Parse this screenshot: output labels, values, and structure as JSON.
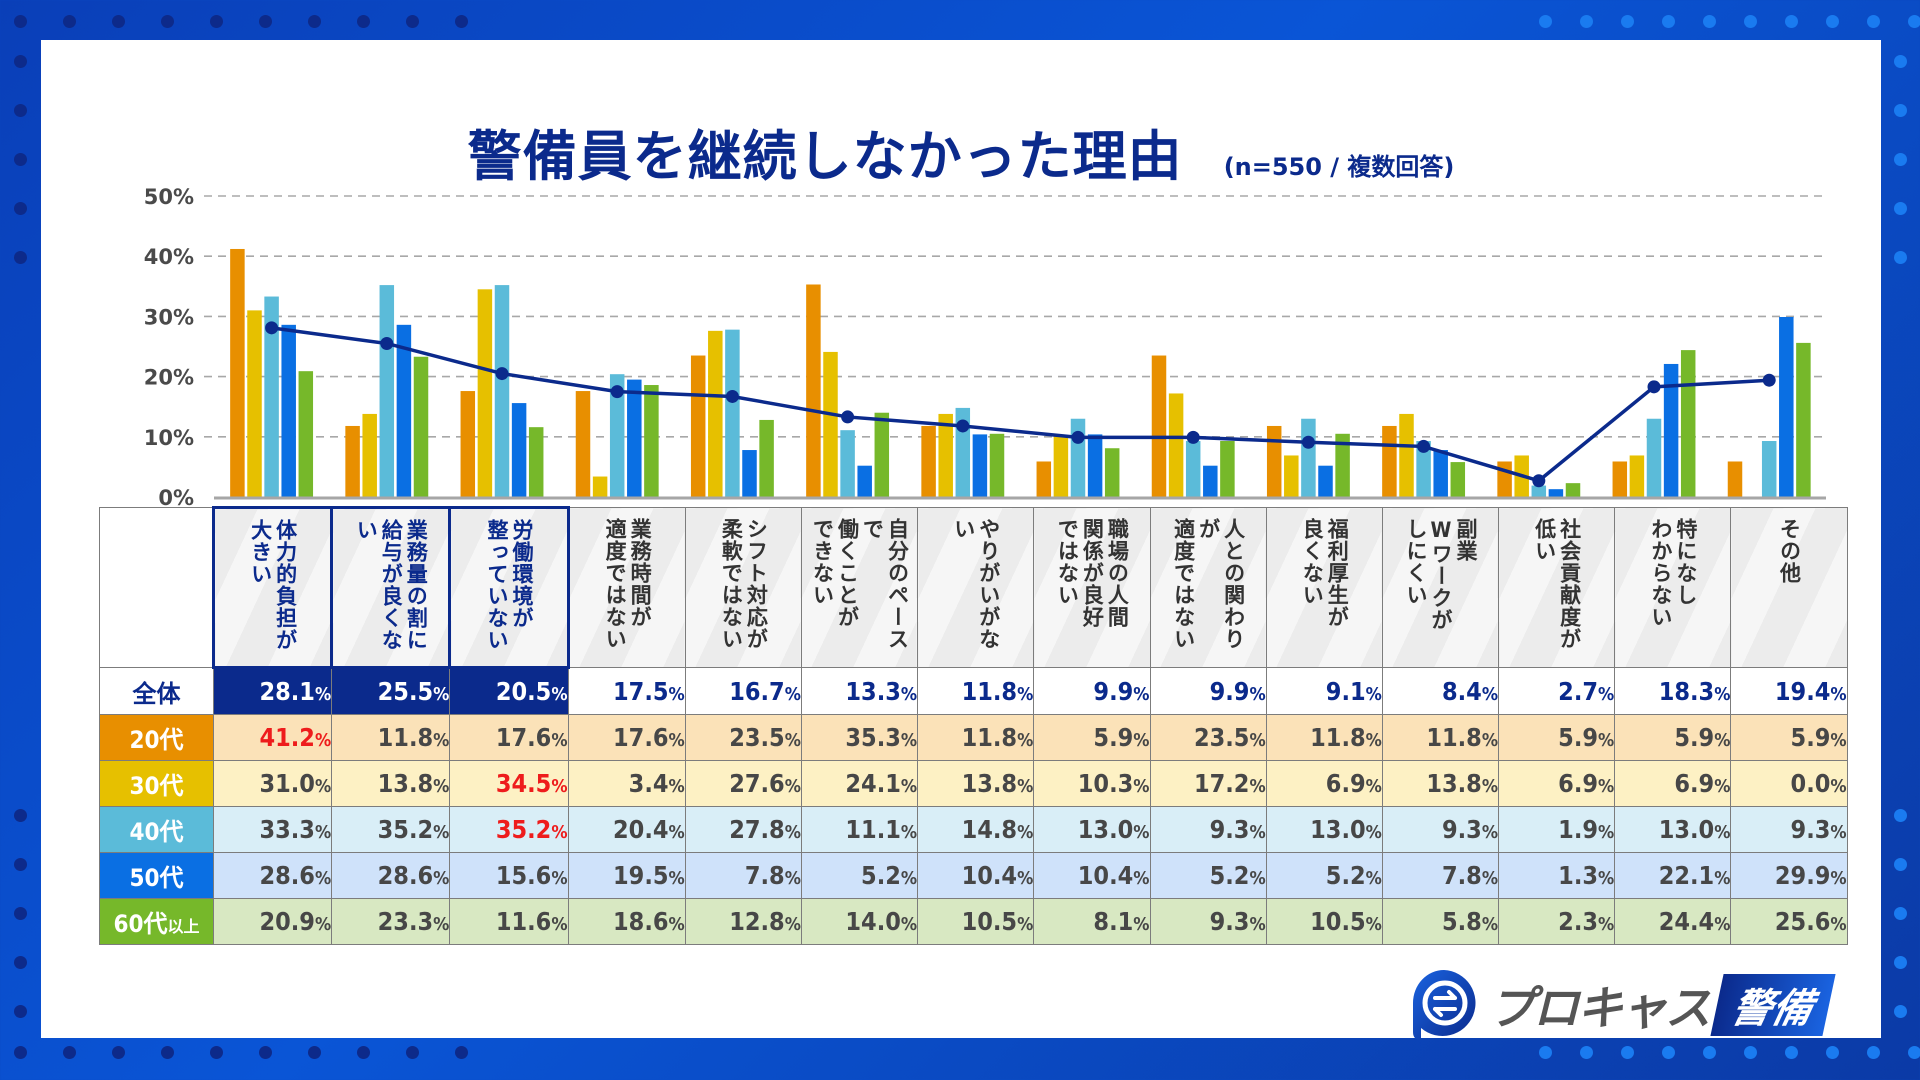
{
  "header": {
    "title": "警備員を継続しなかった理由",
    "subtitle": "(n=550 / 複数回答)"
  },
  "brand": {
    "logo_text": "プロキャス",
    "logo_badge": "警備",
    "logo_icon": "s-arrow-circle-icon"
  },
  "colors": {
    "navy": "#0b2a8c",
    "age20": "#e88f00",
    "age30": "#e6c000",
    "age40": "#5bbbd9",
    "age50": "#0a6fe3",
    "age60": "#76b82a",
    "highlight_red": "#ee1c1c"
  },
  "chart_data": {
    "type": "bar",
    "title": "警備員を継続しなかった理由",
    "subtitle": "(n=550 / 複数回答)",
    "xlabel": "",
    "ylabel": "",
    "ylim": [
      0,
      50
    ],
    "yticks": [
      "0%",
      "10%",
      "20%",
      "30%",
      "40%",
      "50%"
    ],
    "grid": true,
    "categories": [
      "体力的負担が大きい",
      "業務量の割に給与が良くない",
      "労働環境が整っていない",
      "業務時間が適度ではない",
      "シフト対応が柔軟ではない",
      "自分のペースで働くことができない",
      "やりがいがない",
      "職場の人間関係が良好ではない",
      "人との関わりが適度ではない",
      "福利厚生が良くない",
      "副業Wワークがしにくい",
      "社会貢献度が低い",
      "特になしわからない",
      "その他"
    ],
    "category_lines": [
      [
        "体力的負担が",
        "大きい"
      ],
      [
        "業務量の割に",
        "給与が良くない"
      ],
      [
        "労働環境が",
        "整っていない"
      ],
      [
        "業務時間が",
        "適度ではない"
      ],
      [
        "シフト対応が",
        "柔軟ではない"
      ],
      [
        "自分のペースで",
        "働くことが",
        "できない"
      ],
      [
        "やりがいがない"
      ],
      [
        "職場の人間",
        "関係が良好",
        "ではない"
      ],
      [
        "人との関わりが",
        "適度ではない"
      ],
      [
        "福利厚生が",
        "良くない"
      ],
      [
        "副業",
        "Wワークが",
        "しにくい"
      ],
      [
        "社会貢献度が",
        "低い"
      ],
      [
        "特になし",
        "わからない"
      ],
      [
        "その他"
      ]
    ],
    "highlighted_categories": [
      0,
      1,
      2
    ],
    "line_series": {
      "name": "全体",
      "values": [
        28.1,
        25.5,
        20.5,
        17.5,
        16.7,
        13.3,
        11.8,
        9.9,
        9.9,
        9.1,
        8.4,
        2.7,
        18.3,
        19.4
      ]
    },
    "series": [
      {
        "name": "20代",
        "values": [
          41.2,
          11.8,
          17.6,
          17.6,
          23.5,
          35.3,
          11.8,
          5.9,
          23.5,
          11.8,
          11.8,
          5.9,
          5.9,
          5.9
        ]
      },
      {
        "name": "30代",
        "values": [
          31.0,
          13.8,
          34.5,
          3.4,
          27.6,
          24.1,
          13.8,
          10.3,
          17.2,
          6.9,
          13.8,
          6.9,
          6.9,
          0.0
        ]
      },
      {
        "name": "40代",
        "values": [
          33.3,
          35.2,
          35.2,
          20.4,
          27.8,
          11.1,
          14.8,
          13.0,
          9.3,
          13.0,
          9.3,
          1.9,
          13.0,
          9.3
        ]
      },
      {
        "name": "50代",
        "values": [
          28.6,
          28.6,
          15.6,
          19.5,
          7.8,
          5.2,
          10.4,
          10.4,
          5.2,
          5.2,
          7.8,
          1.3,
          22.1,
          29.9
        ]
      },
      {
        "name": "60代以上",
        "values": [
          20.9,
          23.3,
          11.6,
          18.6,
          12.8,
          14.0,
          10.5,
          8.1,
          9.3,
          10.5,
          5.8,
          2.3,
          24.4,
          25.6
        ]
      }
    ]
  },
  "table": {
    "rows": [
      {
        "label": "全体",
        "values": [
          "28.1",
          "25.5",
          "20.5",
          "17.5",
          "16.7",
          "13.3",
          "11.8",
          "9.9",
          "9.9",
          "9.1",
          "8.4",
          "2.7",
          "18.3",
          "19.4"
        ],
        "red": []
      },
      {
        "label": "20代",
        "values": [
          "41.2",
          "11.8",
          "17.6",
          "17.6",
          "23.5",
          "35.3",
          "11.8",
          "5.9",
          "23.5",
          "11.8",
          "11.8",
          "5.9",
          "5.9",
          "5.9"
        ],
        "red": [
          0
        ]
      },
      {
        "label": "30代",
        "values": [
          "31.0",
          "13.8",
          "34.5",
          "3.4",
          "27.6",
          "24.1",
          "13.8",
          "10.3",
          "17.2",
          "6.9",
          "13.8",
          "6.9",
          "6.9",
          "0.0"
        ],
        "red": [
          2
        ]
      },
      {
        "label": "40代",
        "values": [
          "33.3",
          "35.2",
          "35.2",
          "20.4",
          "27.8",
          "11.1",
          "14.8",
          "13.0",
          "9.3",
          "13.0",
          "9.3",
          "1.9",
          "13.0",
          "9.3"
        ],
        "red": [
          2
        ]
      },
      {
        "label": "50代",
        "values": [
          "28.6",
          "28.6",
          "15.6",
          "19.5",
          "7.8",
          "5.2",
          "10.4",
          "10.4",
          "5.2",
          "5.2",
          "7.8",
          "1.3",
          "22.1",
          "29.9"
        ],
        "red": []
      },
      {
        "label": "60代",
        "label_suffix": "以上",
        "values": [
          "20.9",
          "23.3",
          "11.6",
          "18.6",
          "12.8",
          "14.0",
          "10.5",
          "8.1",
          "9.3",
          "10.5",
          "5.8",
          "2.3",
          "24.4",
          "25.6"
        ],
        "red": []
      }
    ],
    "percent_sign": "%"
  }
}
